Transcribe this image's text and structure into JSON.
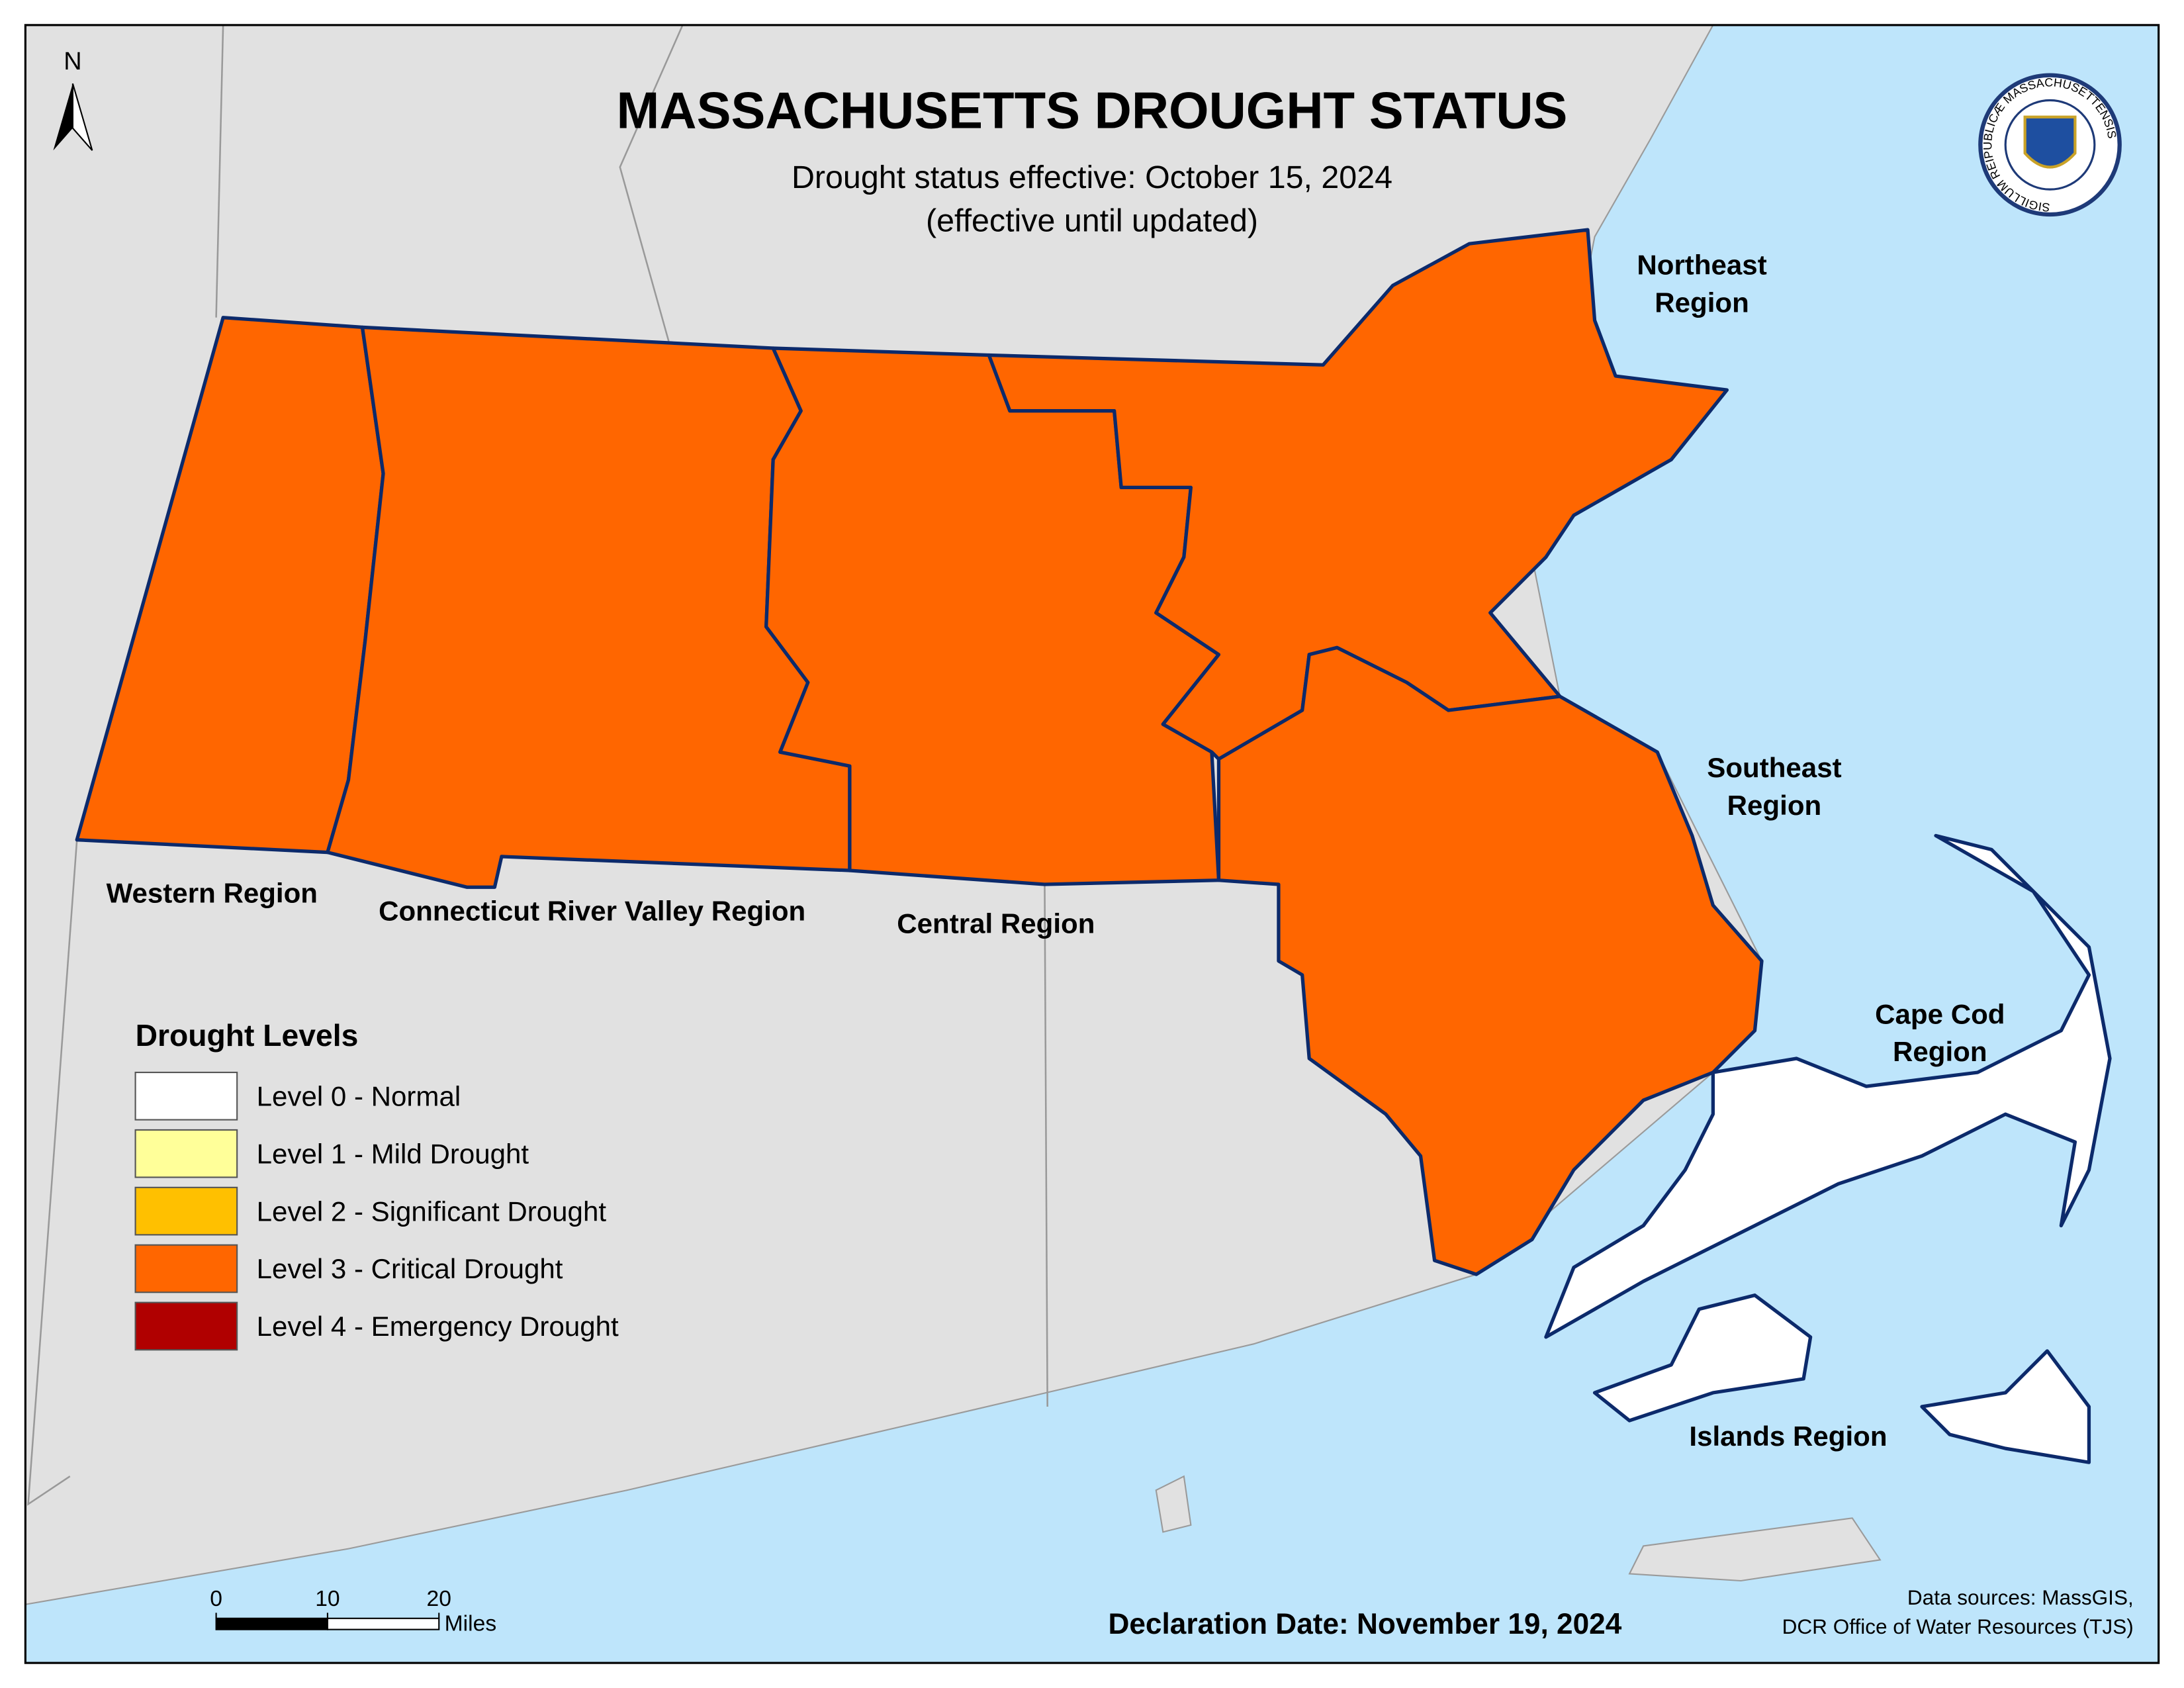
{
  "header": {
    "title": "MASSACHUSETTS DROUGHT STATUS",
    "subtitle": [
      "Drought status effective: October 15, 2024",
      "(effective until updated)"
    ]
  },
  "north_arrow": {
    "label": "N"
  },
  "seal": {
    "text": "SIGILLUM REIPUBLICÆ MASSACHUSETTENSIS"
  },
  "regions": [
    {
      "name": [
        "Western Region"
      ],
      "color": "#ff6600"
    },
    {
      "name": [
        "Connecticut River Valley Region"
      ],
      "color": "#ff6600"
    },
    {
      "name": [
        "Central Region"
      ],
      "color": "#ff6600"
    },
    {
      "name": [
        "Northeast",
        "Region"
      ],
      "color": "#ff6600"
    },
    {
      "name": [
        "Southeast",
        "Region"
      ],
      "color": "#ff6600"
    },
    {
      "name": [
        "Cape Cod",
        "Region"
      ],
      "color": "#ffffff"
    },
    {
      "name": [
        "Islands Region"
      ],
      "color": "#ffffff"
    }
  ],
  "legend": {
    "title": "Drought Levels",
    "items": [
      {
        "label": "Level 0 - Normal",
        "color": "#ffffff"
      },
      {
        "label": "Level 1 - Mild Drought",
        "color": "#ffff99"
      },
      {
        "label": "Level 2 - Significant Drought",
        "color": "#ffc000"
      },
      {
        "label": "Level 3 - Critical Drought",
        "color": "#ff6600"
      },
      {
        "label": "Level 4 - Emergency Drought",
        "color": "#b00000"
      }
    ]
  },
  "scale_bar": {
    "ticks": [
      0,
      10,
      20
    ],
    "unit": "Miles"
  },
  "footer": {
    "declaration": "Declaration Date: November 19, 2024",
    "sources": [
      "Data sources: MassGIS,",
      "DCR Office of Water Resources (TJS)"
    ]
  }
}
